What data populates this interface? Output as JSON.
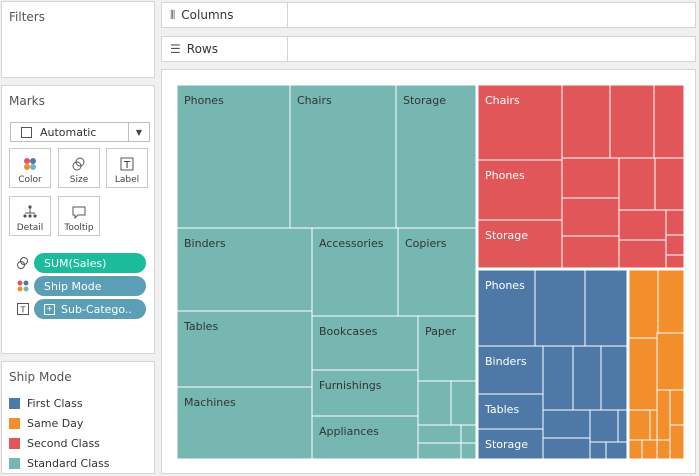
{
  "filters": {
    "title": "Filters"
  },
  "shelves": {
    "columns_label": "Columns",
    "rows_label": "Rows"
  },
  "marks": {
    "title": "Marks",
    "mark_type": "Automatic",
    "buttons": {
      "color": "Color",
      "size": "Size",
      "label": "Label",
      "detail": "Detail",
      "tooltip": "Tooltip"
    },
    "pills": [
      {
        "text": "SUM(Sales)",
        "icon": "size-icon",
        "color": "#1abc9c"
      },
      {
        "text": "Ship Mode",
        "icon": "color-icon",
        "color": "#5a9fb5"
      },
      {
        "text": "Sub-Catego..",
        "icon": "label-icon",
        "color": "#5a9fb5"
      }
    ]
  },
  "legend": {
    "title": "Ship Mode",
    "items": [
      {
        "label": "First Class",
        "color": "#4e79a7"
      },
      {
        "label": "Same Day",
        "color": "#f28e2b"
      },
      {
        "label": "Second Class",
        "color": "#e15759"
      },
      {
        "label": "Standard Class",
        "color": "#76b7b2"
      }
    ]
  },
  "chart_data": {
    "type": "treemap",
    "size_measure": "SUM(Sales)",
    "color_dimension": "Ship Mode",
    "label_dimension": "Sub-Category",
    "groups": [
      {
        "name": "Standard Class",
        "color": "#76b7b2",
        "labeled_tiles": [
          "Phones",
          "Chairs",
          "Storage",
          "Binders",
          "Accessories",
          "Copiers",
          "Tables",
          "Bookcases",
          "Paper",
          "Machines",
          "Furnishings",
          "Appliances"
        ]
      },
      {
        "name": "Second Class",
        "color": "#e15759",
        "labeled_tiles": [
          "Chairs",
          "Phones",
          "Storage"
        ]
      },
      {
        "name": "First Class",
        "color": "#4e79a7",
        "labeled_tiles": [
          "Phones",
          "Binders",
          "Tables",
          "Storage"
        ]
      },
      {
        "name": "Same Day",
        "color": "#f28e2b",
        "labeled_tiles": []
      }
    ]
  }
}
